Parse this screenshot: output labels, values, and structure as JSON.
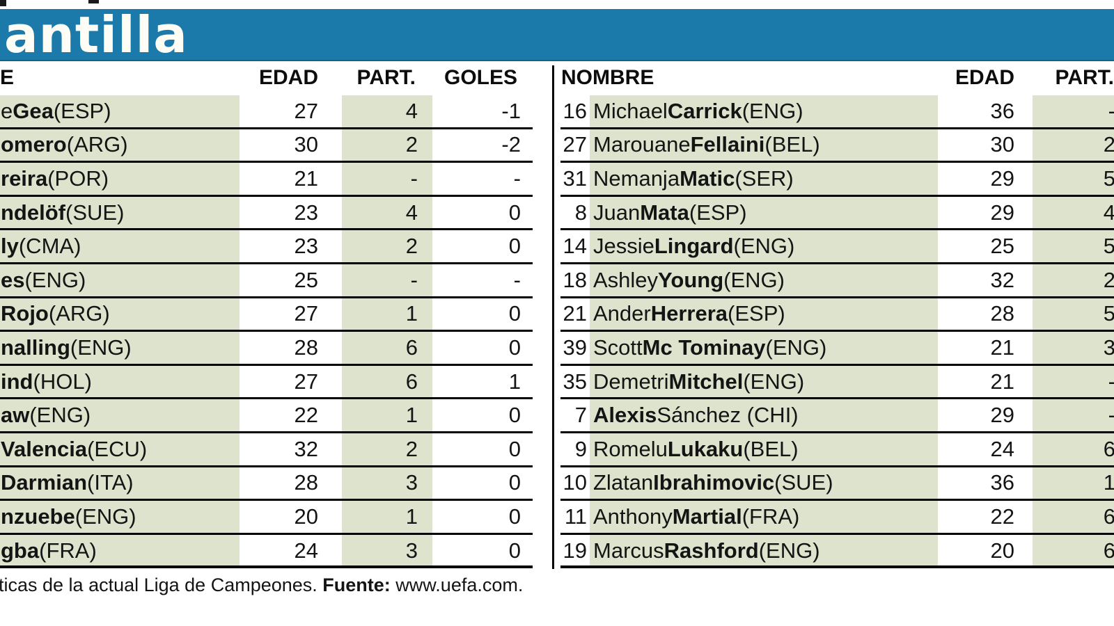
{
  "title": "antilla",
  "colors": {
    "bar_blue": "#1b7aaa",
    "row_shade": "#dde3cc"
  },
  "left_table": {
    "headers": {
      "nombre": "E",
      "edad": "EDAD",
      "part": "PART.",
      "goles": "GOLES"
    },
    "rows": [
      {
        "pre": "e ",
        "bold": "Gea",
        "post": " (ESP)",
        "edad": "27",
        "part": "4",
        "goles": "-1"
      },
      {
        "pre": "",
        "bold": "omero",
        "post": " (ARG)",
        "edad": "30",
        "part": "2",
        "goles": "-2"
      },
      {
        "pre": "",
        "bold": "reira",
        "post": " (POR)",
        "edad": "21",
        "part": "-",
        "goles": "-"
      },
      {
        "pre": "",
        "bold": "ndelöf",
        "post": " (SUE)",
        "edad": "23",
        "part": "4",
        "goles": "0"
      },
      {
        "pre": "",
        "bold": "ly",
        "post": " (CMA)",
        "edad": "23",
        "part": "2",
        "goles": "0"
      },
      {
        "pre": "",
        "bold": "es",
        "post": " (ENG)",
        "edad": "25",
        "part": "-",
        "goles": "-"
      },
      {
        "pre": "",
        "bold": "Rojo",
        "post": " (ARG)",
        "edad": "27",
        "part": "1",
        "goles": "0"
      },
      {
        "pre": "",
        "bold": "nalling",
        "post": " (ENG)",
        "edad": "28",
        "part": "6",
        "goles": "0"
      },
      {
        "pre": "",
        "bold": "ind",
        "post": " (HOL)",
        "edad": "27",
        "part": "6",
        "goles": "1"
      },
      {
        "pre": "",
        "bold": "aw",
        "post": " (ENG)",
        "edad": "22",
        "part": "1",
        "goles": "0"
      },
      {
        "pre": "",
        "bold": "Valencia",
        "post": " (ECU)",
        "edad": "32",
        "part": "2",
        "goles": "0"
      },
      {
        "pre": "",
        "bold": "Darmian",
        "post": " (ITA)",
        "edad": "28",
        "part": "3",
        "goles": "0"
      },
      {
        "pre": "",
        "bold": "nzuebe",
        "post": " (ENG)",
        "edad": "20",
        "part": "1",
        "goles": "0"
      },
      {
        "pre": "",
        "bold": "gba",
        "post": " (FRA)",
        "edad": "24",
        "part": "3",
        "goles": "0"
      }
    ]
  },
  "right_table": {
    "headers": {
      "nombre": "NOMBRE",
      "edad": "EDAD",
      "part": "PART."
    },
    "rows": [
      {
        "num": "16",
        "pre": "Michael ",
        "bold": "Carrick",
        "post": " (ENG)",
        "edad": "36",
        "part": "-"
      },
      {
        "num": "27",
        "pre": "Marouane ",
        "bold": "Fellaini",
        "post": " (BEL)",
        "edad": "30",
        "part": "2"
      },
      {
        "num": "31",
        "pre": "Nemanja ",
        "bold": "Matic",
        "post": " (SER)",
        "edad": "29",
        "part": "5"
      },
      {
        "num": "8",
        "pre": "Juan ",
        "bold": "Mata",
        "post": " (ESP)",
        "edad": "29",
        "part": "4"
      },
      {
        "num": "14",
        "pre": "Jessie ",
        "bold": "Lingard",
        "post": " (ENG)",
        "edad": "25",
        "part": "5"
      },
      {
        "num": "18",
        "pre": "Ashley ",
        "bold": "Young",
        "post": " (ENG)",
        "edad": "32",
        "part": "2"
      },
      {
        "num": "21",
        "pre": "Ander ",
        "bold": "Herrera",
        "post": " (ESP)",
        "edad": "28",
        "part": "5"
      },
      {
        "num": "39",
        "pre": "Scott ",
        "bold": "Mc Tominay",
        "post": " (ENG)",
        "edad": "21",
        "part": "3"
      },
      {
        "num": "35",
        "pre": "Demetri ",
        "bold": "Mitchel",
        "post": " (ENG)",
        "edad": "21",
        "part": "-"
      },
      {
        "num": "7",
        "pre": "",
        "bold": "Alexis",
        "post": " Sánchez (CHI)",
        "edad": "29",
        "part": "-"
      },
      {
        "num": "9",
        "pre": "Romelu ",
        "bold": "Lukaku",
        "post": " (BEL)",
        "edad": "24",
        "part": "6"
      },
      {
        "num": "10",
        "pre": "Zlatan ",
        "bold": "Ibrahimovic",
        "post": " (SUE)",
        "edad": "36",
        "part": "1"
      },
      {
        "num": "11",
        "pre": "Anthony ",
        "bold": "Martial",
        "post": " (FRA)",
        "edad": "22",
        "part": "6"
      },
      {
        "num": "19",
        "pre": "Marcus ",
        "bold": "Rashford",
        "post": " (ENG)",
        "edad": "20",
        "part": "6"
      }
    ]
  },
  "footer": {
    "pre": "ticas de la actual Liga de Campeones. ",
    "bold": "Fuente:",
    "post": " www.uefa.com."
  }
}
